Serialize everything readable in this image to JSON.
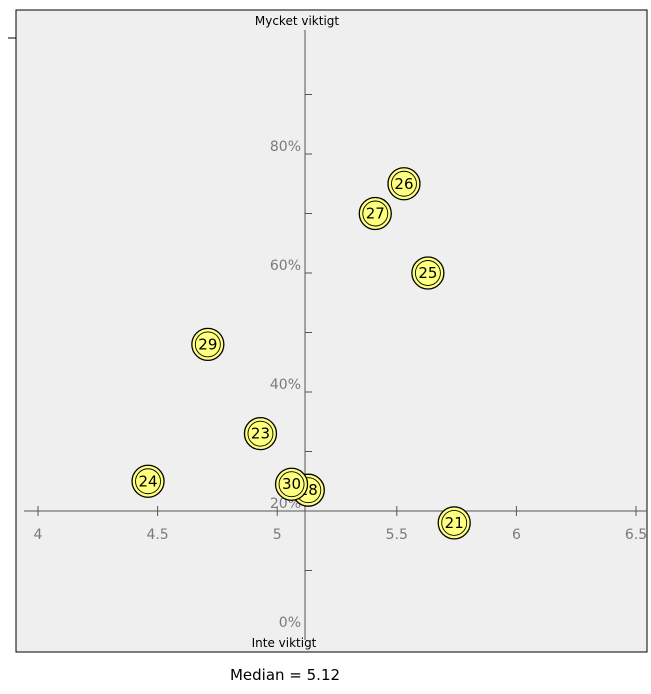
{
  "chart_data": {
    "type": "scatter",
    "top_label": "Mycket viktigt",
    "bottom_label": "Inte viktigt",
    "xlim": [
      4,
      6.5
    ],
    "ylim": [
      0,
      100
    ],
    "x_ticks": [
      "4",
      "4.5",
      "5",
      "5.5",
      "6",
      "6.5"
    ],
    "y_ticks": [
      "0%",
      "20%",
      "40%",
      "60%",
      "80%"
    ],
    "crosshair": {
      "x": 5.12,
      "y": 20
    },
    "grid": false,
    "points": [
      {
        "label": "26",
        "x": 5.53,
        "y": 75
      },
      {
        "label": "27",
        "x": 5.41,
        "y": 70
      },
      {
        "label": "25",
        "x": 5.63,
        "y": 60
      },
      {
        "label": "29",
        "x": 4.71,
        "y": 48
      },
      {
        "label": "23",
        "x": 4.93,
        "y": 33
      },
      {
        "label": "24",
        "x": 4.46,
        "y": 25
      },
      {
        "label": "28",
        "x": 5.13,
        "y": 23.5
      },
      {
        "label": "30",
        "x": 5.06,
        "y": 24.5
      },
      {
        "label": "21",
        "x": 5.74,
        "y": 18
      }
    ],
    "bubble_color": "#ffff80",
    "median_text": "Median = 5.12"
  }
}
